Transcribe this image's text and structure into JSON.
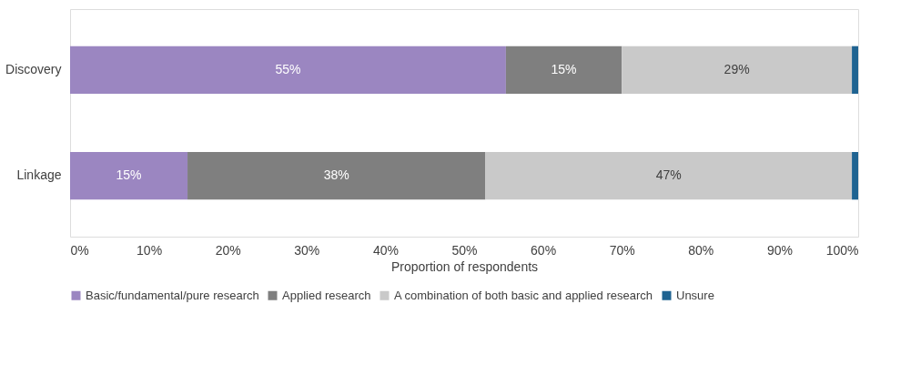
{
  "chart_data": {
    "type": "bar",
    "orientation": "horizontal",
    "stacked": true,
    "categories": [
      "Discovery",
      "Linkage"
    ],
    "series": [
      {
        "name": "Basic/fundamental/pure research",
        "color": "#9b86c1",
        "values": [
          55.3,
          14.9
        ],
        "value_labels": [
          "55%",
          "15%"
        ]
      },
      {
        "name": "Applied research",
        "color": "#7f7f7f",
        "values": [
          14.7,
          37.8
        ],
        "value_labels": [
          "15%",
          "38%"
        ]
      },
      {
        "name": "A combination of both basic and applied research",
        "color": "#c9c9c9",
        "values": [
          29.2,
          46.5
        ],
        "value_labels": [
          "29%",
          "47%"
        ]
      },
      {
        "name": "Unsure",
        "color": "#1f6391",
        "values": [
          0.8,
          0.8
        ],
        "value_labels": [
          null,
          null
        ]
      }
    ],
    "xlabel": "Proportion of respondents",
    "xlim": [
      0,
      100
    ],
    "xticks": [
      {
        "value": 0,
        "label": "0%"
      },
      {
        "value": 10,
        "label": "10%"
      },
      {
        "value": 20,
        "label": "20%"
      },
      {
        "value": 30,
        "label": "30%"
      },
      {
        "value": 40,
        "label": "40%"
      },
      {
        "value": 50,
        "label": "50%"
      },
      {
        "value": 60,
        "label": "60%"
      },
      {
        "value": 70,
        "label": "70%"
      },
      {
        "value": 80,
        "label": "80%"
      },
      {
        "value": 90,
        "label": "90%"
      },
      {
        "value": 100,
        "label": "100%"
      }
    ],
    "grid": false,
    "legend": "bottom"
  }
}
